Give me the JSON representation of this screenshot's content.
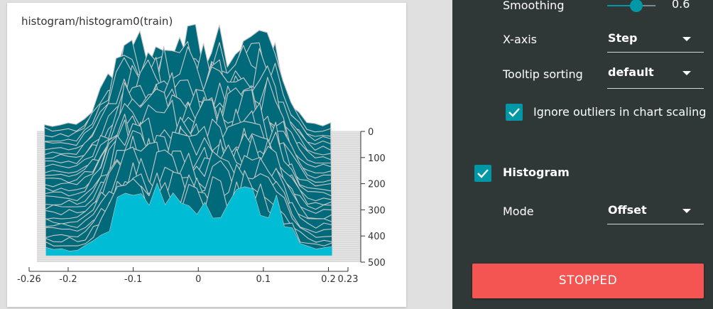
{
  "card": {
    "title": "histogram/histogram0(train)"
  },
  "chart_data": {
    "type": "area",
    "mode": "offset",
    "title": "histogram/histogram0(train)",
    "xlim": [
      -0.26,
      0.23
    ],
    "x_ticks": [
      "-0.26",
      "-0.2",
      "-0.1",
      "0",
      "0.1",
      "0.2",
      "0.23"
    ],
    "x_tick_values": [
      -0.26,
      -0.2,
      -0.1,
      0,
      0.1,
      0.2,
      0.23
    ],
    "y_axis": "step",
    "ylim": [
      0,
      500
    ],
    "y_ticks": [
      "0",
      "100",
      "200",
      "300",
      "400",
      "500"
    ],
    "y_tick_values": [
      0,
      100,
      200,
      300,
      400,
      500
    ],
    "colors": {
      "front_fill": "#00bcd4",
      "back_fill": "#006a7a",
      "stroke": "#c8c8c8",
      "plane": "#c8c8c8"
    }
  },
  "settings": {
    "smoothing": {
      "label": "Smoothing",
      "value": "0.6",
      "fraction": 0.6
    },
    "x_axis": {
      "label": "X-axis",
      "value": "Step"
    },
    "tooltip_sorting": {
      "label": "Tooltip sorting",
      "value": "default"
    },
    "ignore_outliers": {
      "label": "Ignore outliers in chart scaling",
      "checked": true
    },
    "histogram": {
      "label": "Histogram",
      "checked": true
    },
    "mode": {
      "label": "Mode",
      "value": "Offset"
    },
    "status_button": {
      "label": "STOPPED"
    }
  }
}
